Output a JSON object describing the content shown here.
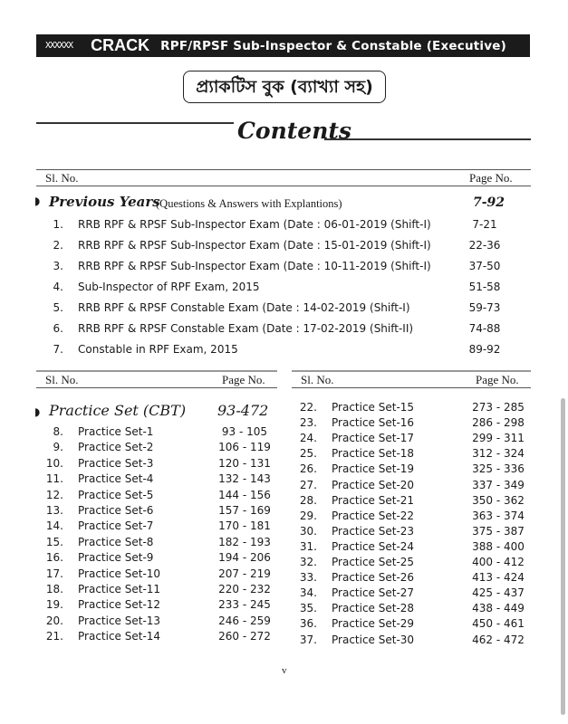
{
  "header": {
    "logo": "XXXXXX",
    "crack": "CRACK",
    "subtitle": "RPF/RPSF Sub-Inspector & Constable (Executive)"
  },
  "bengali_title": "প্র্যাকটিস বুক (ব্যাখ্যা সহ)",
  "contents_title": "Contents",
  "col_sl": "Sl. No.",
  "col_page": "Page No.",
  "previous_years": {
    "title": "Previous Years",
    "note": "(Questions & Answers with Explantions)",
    "pages": "7-92",
    "items": [
      {
        "n": "1.",
        "t": "RRB RPF & RPSF Sub-Inspector Exam (Date : 06-01-2019 (Shift-I)",
        "p": "7-21"
      },
      {
        "n": "2.",
        "t": "RRB RPF & RPSF Sub-Inspector Exam (Date : 15-01-2019 (Shift-I)",
        "p": "22-36"
      },
      {
        "n": "3.",
        "t": "RRB RPF & RPSF Sub-Inspector Exam (Date : 10-11-2019 (Shift-I)",
        "p": "37-50"
      },
      {
        "n": "4.",
        "t": "Sub-Inspector of RPF Exam, 2015",
        "p": "51-58"
      },
      {
        "n": "5.",
        "t": "RRB RPF & RPSF Constable Exam (Date : 14-02-2019 (Shift-I)",
        "p": "59-73"
      },
      {
        "n": "6.",
        "t": "RRB RPF & RPSF Constable Exam (Date : 17-02-2019 (Shift-II)",
        "p": "74-88"
      },
      {
        "n": "7.",
        "t": "Constable in RPF Exam, 2015",
        "p": "89-92"
      }
    ]
  },
  "practice": {
    "title": "Practice Set (CBT)",
    "pages": "93-472",
    "left": [
      {
        "n": "8.",
        "t": "Practice Set-1",
        "p": "93 - 105"
      },
      {
        "n": "9.",
        "t": "Practice Set-2",
        "p": "106 - 119"
      },
      {
        "n": "10.",
        "t": "Practice Set-3",
        "p": "120 - 131"
      },
      {
        "n": "11.",
        "t": "Practice Set-4",
        "p": "132 - 143"
      },
      {
        "n": "12.",
        "t": "Practice Set-5",
        "p": "144 - 156"
      },
      {
        "n": "13.",
        "t": "Practice Set-6",
        "p": "157 - 169"
      },
      {
        "n": "14.",
        "t": "Practice Set-7",
        "p": "170 - 181"
      },
      {
        "n": "15.",
        "t": "Practice Set-8",
        "p": "182 - 193"
      },
      {
        "n": "16.",
        "t": "Practice Set-9",
        "p": "194 - 206"
      },
      {
        "n": "17.",
        "t": "Practice Set-10",
        "p": "207 - 219"
      },
      {
        "n": "18.",
        "t": "Practice Set-11",
        "p": "220 - 232"
      },
      {
        "n": "19.",
        "t": "Practice Set-12",
        "p": "233 - 245"
      },
      {
        "n": "20.",
        "t": "Practice Set-13",
        "p": "246 - 259"
      },
      {
        "n": "21.",
        "t": "Practice Set-14",
        "p": "260 - 272"
      }
    ],
    "right": [
      {
        "n": "22.",
        "t": "Practice Set-15",
        "p": "273 - 285"
      },
      {
        "n": "23.",
        "t": "Practice Set-16",
        "p": "286 - 298"
      },
      {
        "n": "24.",
        "t": "Practice Set-17",
        "p": "299 - 311"
      },
      {
        "n": "25.",
        "t": "Practice Set-18",
        "p": "312 - 324"
      },
      {
        "n": "26.",
        "t": "Practice Set-19",
        "p": "325 - 336"
      },
      {
        "n": "27.",
        "t": "Practice Set-20",
        "p": "337 - 349"
      },
      {
        "n": "28.",
        "t": "Practice Set-21",
        "p": "350 - 362"
      },
      {
        "n": "29.",
        "t": "Practice Set-22",
        "p": "363 - 374"
      },
      {
        "n": "30.",
        "t": "Practice Set-23",
        "p": "375 - 387"
      },
      {
        "n": "31.",
        "t": "Practice Set-24",
        "p": "388 - 400"
      },
      {
        "n": "32.",
        "t": "Practice Set-25",
        "p": "400 - 412"
      },
      {
        "n": "33.",
        "t": "Practice Set-26",
        "p": "413 - 424"
      },
      {
        "n": "34.",
        "t": "Practice Set-27",
        "p": "425 - 437"
      },
      {
        "n": "35.",
        "t": "Practice Set-28",
        "p": "438 - 449"
      },
      {
        "n": "36.",
        "t": "Practice Set-29",
        "p": "450 - 461"
      },
      {
        "n": "37.",
        "t": "Practice Set-30",
        "p": "462 - 472"
      }
    ]
  },
  "page_number": "v"
}
